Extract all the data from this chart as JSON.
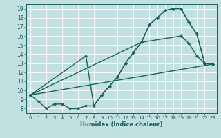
{
  "xlabel": "Humidex (Indice chaleur)",
  "xlim": [
    -0.5,
    23.5
  ],
  "ylim": [
    7.5,
    19.5
  ],
  "xticks": [
    0,
    1,
    2,
    3,
    4,
    5,
    6,
    7,
    8,
    9,
    10,
    11,
    12,
    13,
    14,
    15,
    16,
    17,
    18,
    19,
    20,
    21,
    22,
    23
  ],
  "yticks": [
    8,
    9,
    10,
    11,
    12,
    13,
    14,
    15,
    16,
    17,
    18,
    19
  ],
  "bg_color": "#c2e0e0",
  "grid_color": "#ffffff",
  "line_color": "#1a6060",
  "line1_x": [
    0,
    1,
    2,
    3,
    4,
    5,
    6,
    7,
    8,
    9,
    10,
    11,
    12,
    13,
    14,
    15,
    16,
    17,
    18,
    19,
    20,
    21,
    22,
    23
  ],
  "line1_y": [
    9.5,
    8.8,
    8.0,
    8.5,
    8.5,
    8.0,
    8.0,
    8.3,
    8.3,
    9.5,
    10.5,
    11.5,
    13.0,
    14.2,
    15.3,
    17.2,
    18.0,
    18.8,
    19.0,
    19.0,
    17.5,
    16.2,
    13.0,
    12.9
  ],
  "line2_x": [
    0,
    7,
    8,
    9,
    10,
    11,
    12,
    13,
    14,
    15,
    16,
    17,
    18,
    19,
    20,
    21,
    22,
    23
  ],
  "line2_y": [
    9.5,
    13.8,
    8.3,
    9.5,
    10.5,
    11.5,
    13.0,
    14.2,
    15.3,
    17.2,
    18.0,
    18.8,
    19.0,
    19.0,
    17.5,
    16.2,
    13.0,
    12.9
  ],
  "line3_x": [
    0,
    14,
    19,
    20,
    21,
    22,
    23
  ],
  "line3_y": [
    9.5,
    15.3,
    16.0,
    15.2,
    13.8,
    13.0,
    12.9
  ],
  "line4_x": [
    0,
    23
  ],
  "line4_y": [
    9.5,
    12.9
  ],
  "marker_size": 2.5,
  "linewidth": 1.0
}
